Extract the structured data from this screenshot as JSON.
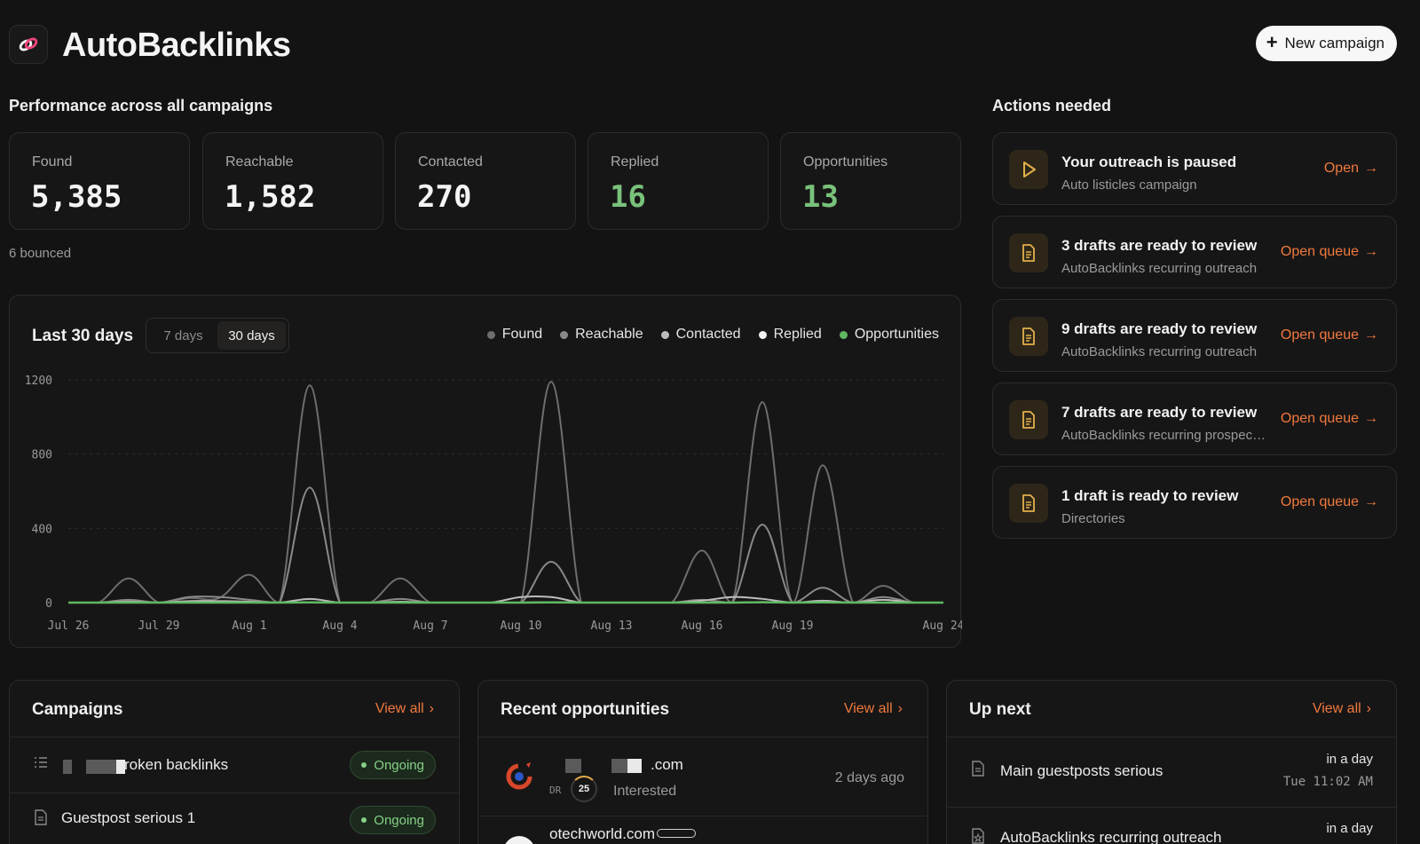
{
  "header": {
    "app_title": "AutoBacklinks",
    "new_campaign_label": "New campaign"
  },
  "performance": {
    "title": "Performance across all campaigns",
    "stats": [
      {
        "label": "Found",
        "value": "5,385"
      },
      {
        "label": "Reachable",
        "value": "1,582"
      },
      {
        "label": "Contacted",
        "value": "270"
      },
      {
        "label": "Replied",
        "value": "16"
      },
      {
        "label": "Opportunities",
        "value": "13"
      }
    ],
    "bounced": "6 bounced"
  },
  "chart": {
    "title": "Last 30 days",
    "range_options": [
      "7 days",
      "30 days"
    ],
    "selected_range": "30 days"
  },
  "chart_data": {
    "type": "area",
    "x": [
      "Jul 26",
      "Jul 27",
      "Jul 28",
      "Jul 29",
      "Jul 30",
      "Jul 31",
      "Aug 1",
      "Aug 2",
      "Aug 3",
      "Aug 4",
      "Aug 5",
      "Aug 6",
      "Aug 7",
      "Aug 8",
      "Aug 9",
      "Aug 10",
      "Aug 11",
      "Aug 12",
      "Aug 13",
      "Aug 14",
      "Aug 15",
      "Aug 16",
      "Aug 17",
      "Aug 18",
      "Aug 19",
      "Aug 20",
      "Aug 21",
      "Aug 22",
      "Aug 23",
      "Aug 24"
    ],
    "tick_labels": [
      "Jul 26",
      "Jul 29",
      "Aug 1",
      "Aug 4",
      "Aug 7",
      "Aug 10",
      "Aug 13",
      "Aug 16",
      "Aug 19",
      "Aug 24"
    ],
    "ylim": [
      0,
      1200
    ],
    "yticks": [
      0,
      400,
      800,
      1200
    ],
    "grid": true,
    "legend_position": "top-right",
    "series": [
      {
        "name": "Found",
        "color": "#6e6e6e",
        "values": [
          0,
          0,
          130,
          0,
          25,
          25,
          150,
          0,
          1170,
          0,
          0,
          130,
          0,
          0,
          0,
          0,
          1190,
          0,
          0,
          0,
          0,
          280,
          0,
          1080,
          0,
          740,
          0,
          90,
          0,
          0
        ]
      },
      {
        "name": "Reachable",
        "color": "#8a8a8a",
        "values": [
          0,
          0,
          15,
          0,
          30,
          30,
          15,
          0,
          620,
          0,
          0,
          20,
          0,
          0,
          0,
          0,
          220,
          0,
          0,
          0,
          0,
          15,
          0,
          420,
          0,
          80,
          0,
          30,
          0,
          0
        ]
      },
      {
        "name": "Contacted",
        "color": "#bdbdbd",
        "values": [
          0,
          0,
          5,
          0,
          8,
          8,
          5,
          0,
          20,
          0,
          0,
          5,
          0,
          0,
          0,
          30,
          30,
          0,
          0,
          0,
          0,
          10,
          30,
          20,
          0,
          10,
          0,
          15,
          0,
          0
        ]
      },
      {
        "name": "Replied",
        "color": "#f2f2f2",
        "values": [
          0,
          0,
          0,
          0,
          0,
          0,
          0,
          0,
          1,
          0,
          0,
          0,
          0,
          0,
          0,
          0,
          2,
          0,
          0,
          0,
          0,
          0,
          0,
          3,
          0,
          1,
          0,
          0,
          0,
          0
        ]
      },
      {
        "name": "Opportunities",
        "color": "#5fb861",
        "values": [
          0,
          0,
          0,
          0,
          0,
          0,
          0,
          0,
          1,
          0,
          0,
          0,
          0,
          0,
          0,
          0,
          1,
          0,
          0,
          0,
          0,
          0,
          0,
          2,
          0,
          1,
          0,
          0,
          0,
          0
        ]
      }
    ]
  },
  "actions": {
    "title": "Actions needed",
    "items": [
      {
        "title": "Your outreach is paused",
        "subtitle": "Auto listicles campaign",
        "link": "Open",
        "icon": "play-icon"
      },
      {
        "title": "3 drafts are ready to review",
        "subtitle": "AutoBacklinks recurring outreach",
        "link": "Open queue",
        "icon": "document-icon"
      },
      {
        "title": "9 drafts are ready to review",
        "subtitle": "AutoBacklinks recurring outreach",
        "link": "Open queue",
        "icon": "document-icon"
      },
      {
        "title": "7 drafts are ready to review",
        "subtitle": "AutoBacklinks recurring prospecting",
        "link": "Open queue",
        "icon": "document-icon"
      },
      {
        "title": "1 draft is ready to review",
        "subtitle": "Directories",
        "link": "Open queue",
        "icon": "document-icon"
      }
    ]
  },
  "campaigns": {
    "title": "Campaigns",
    "view_all": "View all",
    "items": [
      {
        "name": "roken backlinks",
        "status": "Ongoing",
        "icon": "list-icon"
      },
      {
        "name": "Guestpost serious 1",
        "status": "Ongoing",
        "icon": "document-icon"
      }
    ]
  },
  "opportunities": {
    "title": "Recent opportunities",
    "view_all": "View all",
    "items": [
      {
        "domain": ".com",
        "dr_label": "DR",
        "dr": "25",
        "status": "Interested",
        "time": "2 days ago"
      },
      {
        "domain": "otechworld.com"
      }
    ]
  },
  "up_next": {
    "title": "Up next",
    "view_all": "View all",
    "items": [
      {
        "name": "Main guestposts serious",
        "when": "in a day",
        "time": "Tue 11:02 AM"
      },
      {
        "name": "AutoBacklinks recurring outreach",
        "when": "in a day"
      }
    ]
  },
  "colors": {
    "accent": "#f0793e",
    "positive": "#79c27b",
    "background": "#141313"
  }
}
